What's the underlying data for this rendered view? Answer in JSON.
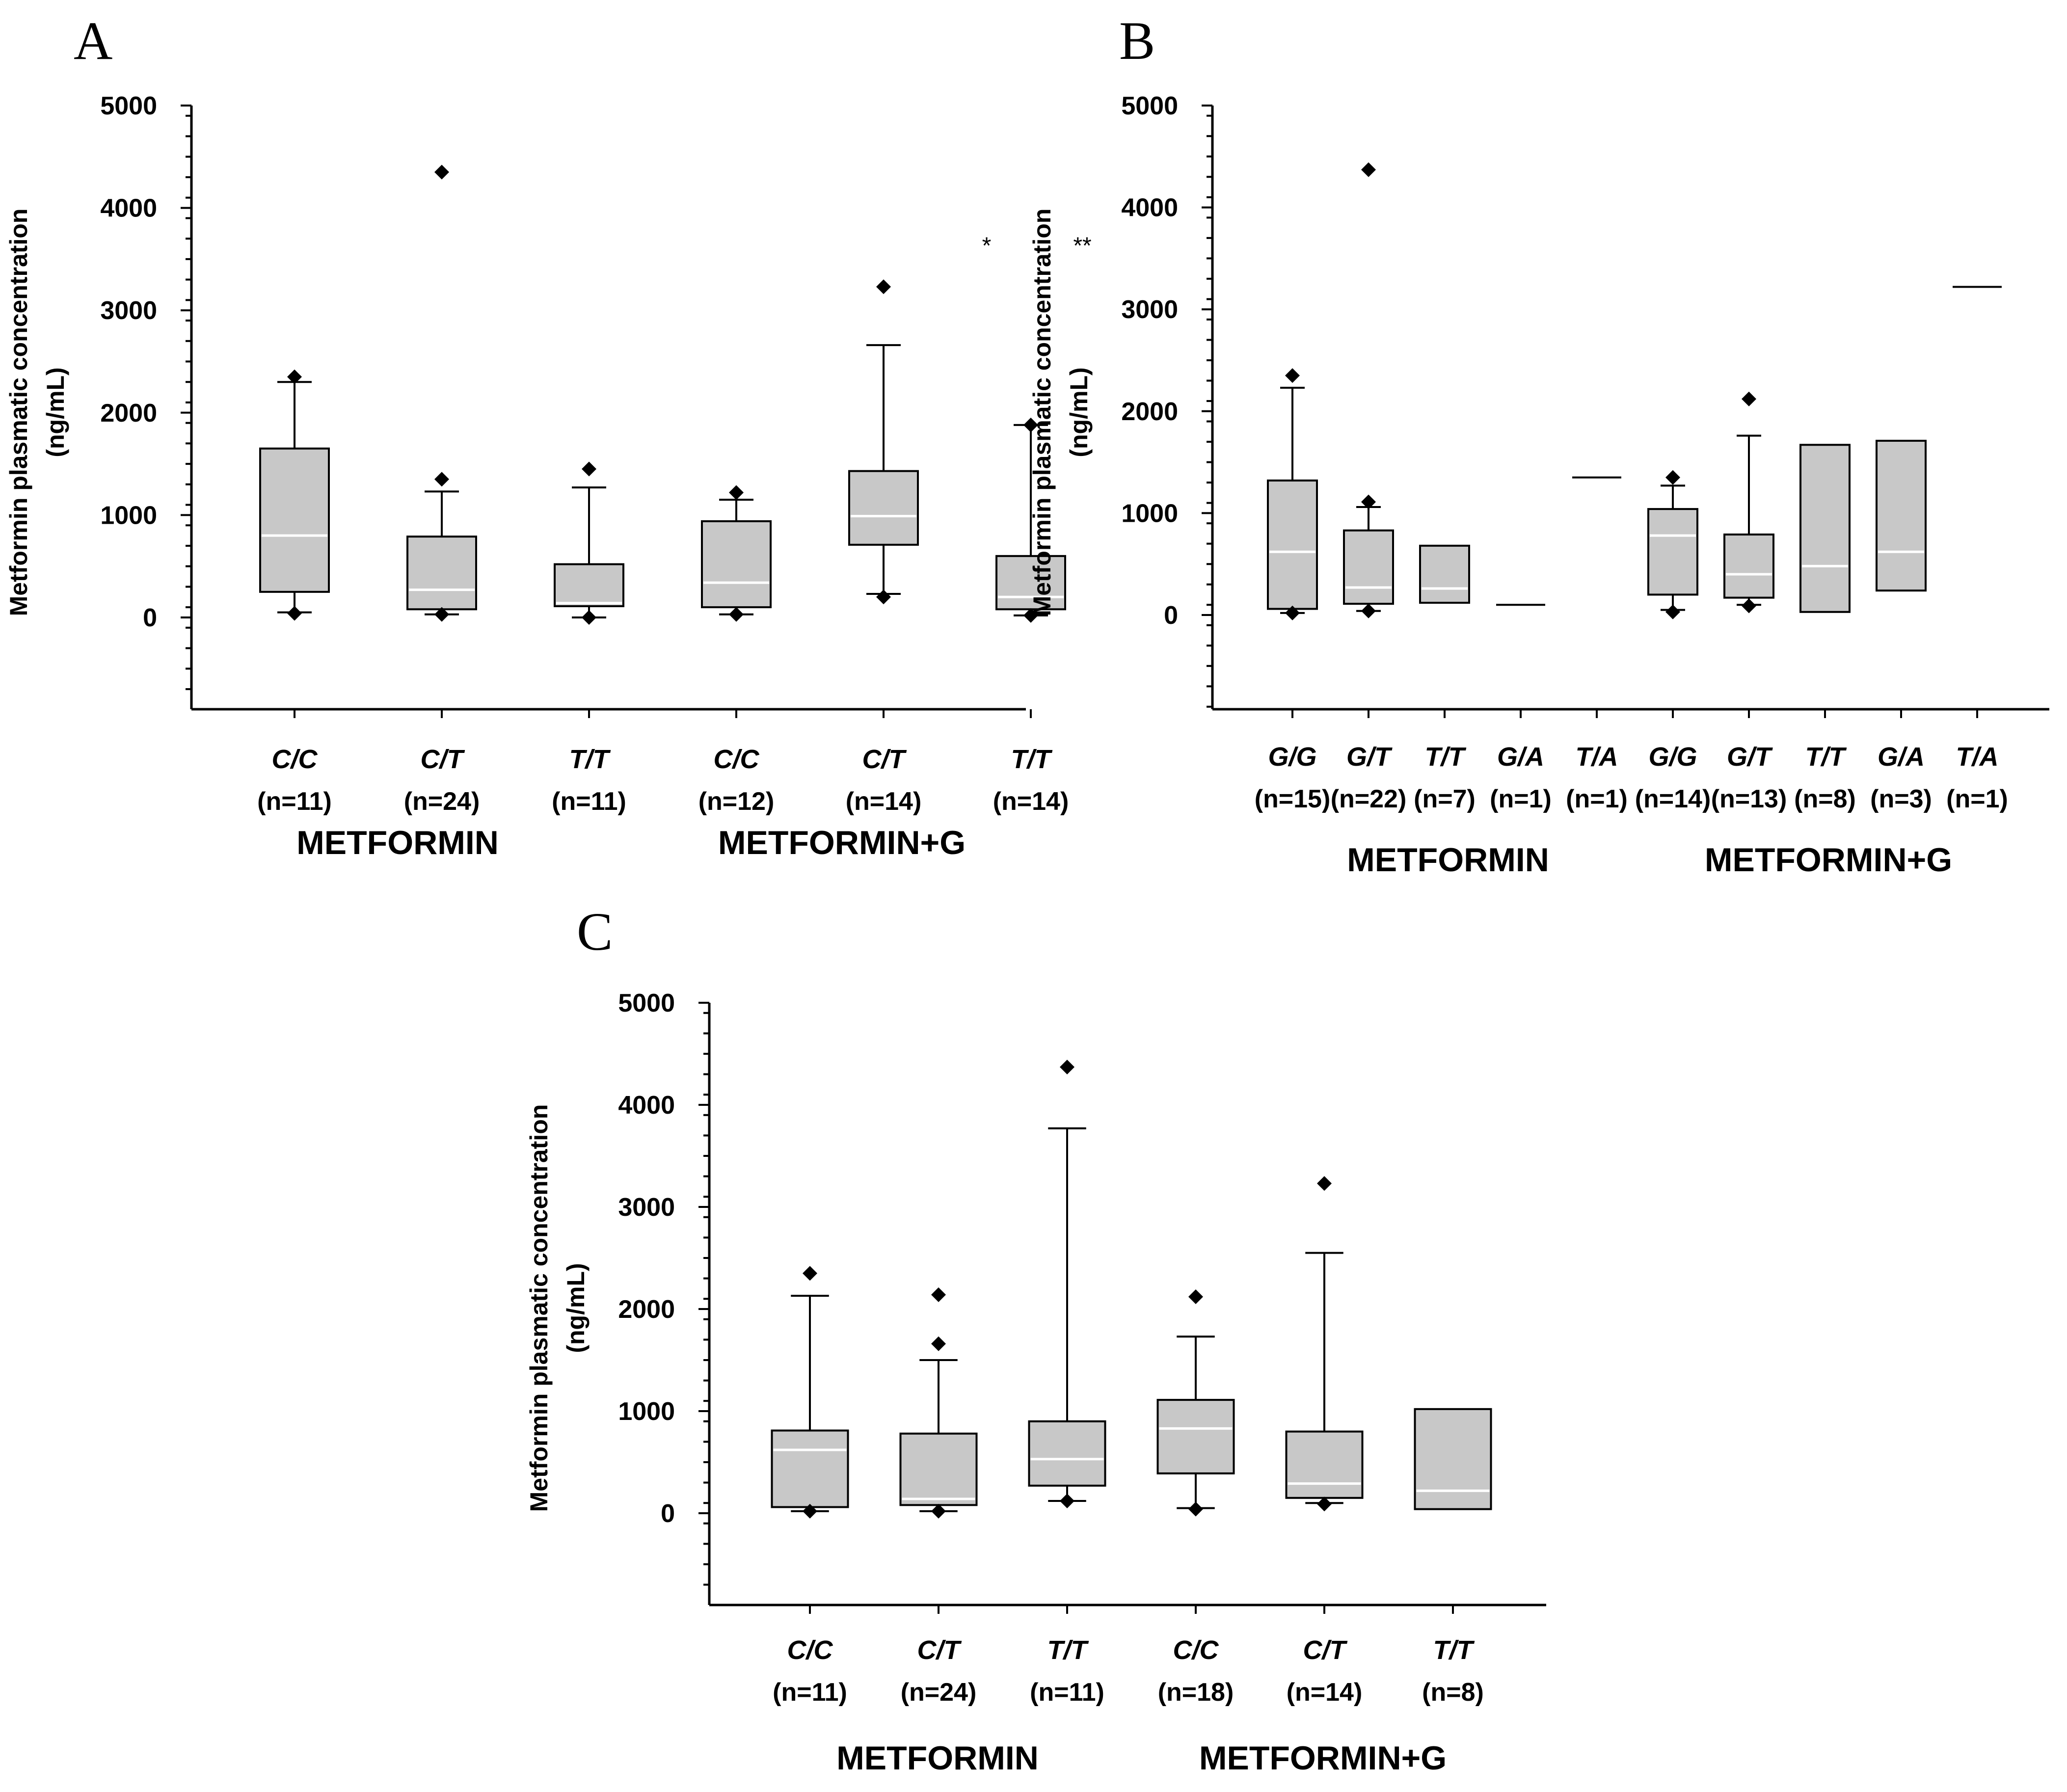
{
  "chart_data": [
    {
      "type": "box",
      "panel": "A",
      "ylabel_line1": "Metformin plasmatic concentration",
      "ylabel_line2": "(ng/mL)",
      "ylim": [
        -900,
        5000
      ],
      "yticks": [
        0,
        1000,
        2000,
        3000,
        4000,
        5000
      ],
      "groups": [
        {
          "label": "METFORMIN",
          "categories": [
            "C/C",
            "C/T",
            "T/T"
          ]
        },
        {
          "label": "METFORMIN+G",
          "categories": [
            "C/C",
            "C/T",
            "T/T"
          ]
        }
      ],
      "categories": [
        {
          "genotype": "C/C",
          "n": "(n=11)",
          "q1": 250,
          "median": 800,
          "q3": 1650,
          "whisker_low": 50,
          "whisker_high": 2300,
          "outliers": [
            2350,
            40
          ]
        },
        {
          "genotype": "C/T",
          "n": "(n=24)",
          "q1": 80,
          "median": 270,
          "q3": 790,
          "whisker_low": 30,
          "whisker_high": 1230,
          "outliers": [
            4350,
            1350,
            30
          ]
        },
        {
          "genotype": "T/T",
          "n": "(n=11)",
          "q1": 110,
          "median": 140,
          "q3": 520,
          "whisker_low": 0,
          "whisker_high": 1270,
          "outliers": [
            1450,
            0
          ]
        },
        {
          "genotype": "C/C",
          "n": "(n=12)",
          "q1": 100,
          "median": 340,
          "q3": 940,
          "whisker_low": 30,
          "whisker_high": 1150,
          "outliers": [
            1220,
            30
          ]
        },
        {
          "genotype": "C/T",
          "n": "(n=14)",
          "q1": 710,
          "median": 990,
          "q3": 1430,
          "whisker_low": 230,
          "whisker_high": 2660,
          "outliers": [
            3230,
            200
          ]
        },
        {
          "genotype": "T/T",
          "n": "(n=14)",
          "q1": 80,
          "median": 200,
          "q3": 600,
          "whisker_low": 20,
          "whisker_high": 1880,
          "outliers": [
            1880,
            20
          ]
        }
      ],
      "annotations": [
        {
          "text": "*",
          "x_category": 4.7,
          "y": 3650
        },
        {
          "text": "**",
          "x_category": 5.35,
          "y": 3650
        }
      ]
    },
    {
      "type": "box",
      "panel": "B",
      "ylabel_line1": "Metformin plasmatic concentration",
      "ylabel_line2": "(ng/mL)",
      "ylim": [
        -900,
        5000
      ],
      "yticks": [
        0,
        1000,
        2000,
        3000,
        4000,
        5000
      ],
      "groups": [
        {
          "label": "METFORMIN",
          "categories": [
            "G/G",
            "G/T",
            "T/T",
            "G/A",
            "T/A"
          ]
        },
        {
          "label": "METFORMIN+G",
          "categories": [
            "G/G",
            "G/T",
            "T/T",
            "G/A",
            "T/A"
          ]
        }
      ],
      "categories": [
        {
          "genotype": "G/G",
          "n": "(n=15)",
          "q1": 60,
          "median": 620,
          "q3": 1320,
          "whisker_low": 20,
          "whisker_high": 2230,
          "outliers": [
            2350,
            20
          ]
        },
        {
          "genotype": "G/T",
          "n": "(n=22)",
          "q1": 110,
          "median": 270,
          "q3": 830,
          "whisker_low": 40,
          "whisker_high": 1060,
          "outliers": [
            4370,
            1110,
            40
          ]
        },
        {
          "genotype": "T/T",
          "n": "(n=7)",
          "q1": 120,
          "median": 260,
          "q3": 680,
          "whisker_low": null,
          "whisker_high": null,
          "outliers": []
        },
        {
          "genotype": "G/A",
          "n": "(n=1)",
          "single_value": 100
        },
        {
          "genotype": "T/A",
          "n": "(n=1)",
          "single_value": 1350
        },
        {
          "genotype": "G/G",
          "n": "(n=14)",
          "q1": 200,
          "median": 780,
          "q3": 1040,
          "whisker_low": 50,
          "whisker_high": 1270,
          "outliers": [
            1350,
            30
          ]
        },
        {
          "genotype": "G/T",
          "n": "(n=13)",
          "q1": 170,
          "median": 400,
          "q3": 790,
          "whisker_low": 100,
          "whisker_high": 1760,
          "outliers": [
            2120,
            90
          ]
        },
        {
          "genotype": "T/T",
          "n": "(n=8)",
          "q1": 30,
          "median": 480,
          "q3": 1670,
          "whisker_low": null,
          "whisker_high": null,
          "outliers": []
        },
        {
          "genotype": "G/A",
          "n": "(n=3)",
          "q1": 240,
          "median": 620,
          "q3": 1710,
          "whisker_low": null,
          "whisker_high": null,
          "outliers": []
        },
        {
          "genotype": "T/A",
          "n": "(n=1)",
          "single_value": 3220
        }
      ]
    },
    {
      "type": "box",
      "panel": "C",
      "ylabel_line1": "Metformin plasmatic concentration",
      "ylabel_line2": "(ng/mL)",
      "ylim": [
        -900,
        5000
      ],
      "yticks": [
        0,
        1000,
        2000,
        3000,
        4000,
        5000
      ],
      "groups": [
        {
          "label": "METFORMIN",
          "categories": [
            "C/C",
            "C/T",
            "T/T"
          ]
        },
        {
          "label": "METFORMIN+G",
          "categories": [
            "C/C",
            "C/T",
            "T/T"
          ]
        }
      ],
      "categories": [
        {
          "genotype": "C/C",
          "n": "(n=11)",
          "q1": 60,
          "median": 620,
          "q3": 810,
          "whisker_low": 20,
          "whisker_high": 2130,
          "outliers": [
            2350,
            20
          ]
        },
        {
          "genotype": "C/T",
          "n": "(n=24)",
          "q1": 80,
          "median": 140,
          "q3": 780,
          "whisker_low": 20,
          "whisker_high": 1500,
          "outliers": [
            2140,
            1660,
            20
          ]
        },
        {
          "genotype": "T/T",
          "n": "(n=11)",
          "q1": 270,
          "median": 530,
          "q3": 900,
          "whisker_low": 120,
          "whisker_high": 3770,
          "outliers": [
            4370,
            120
          ]
        },
        {
          "genotype": "C/C",
          "n": "(n=18)",
          "q1": 390,
          "median": 830,
          "q3": 1110,
          "whisker_low": 50,
          "whisker_high": 1730,
          "outliers": [
            2120,
            40
          ]
        },
        {
          "genotype": "C/T",
          "n": "(n=14)",
          "q1": 150,
          "median": 290,
          "q3": 800,
          "whisker_low": 100,
          "whisker_high": 2550,
          "outliers": [
            3230,
            90
          ]
        },
        {
          "genotype": "T/T",
          "n": "(n=8)",
          "q1": 40,
          "median": 220,
          "q3": 1020,
          "whisker_low": null,
          "whisker_high": null,
          "outliers": []
        }
      ]
    }
  ]
}
